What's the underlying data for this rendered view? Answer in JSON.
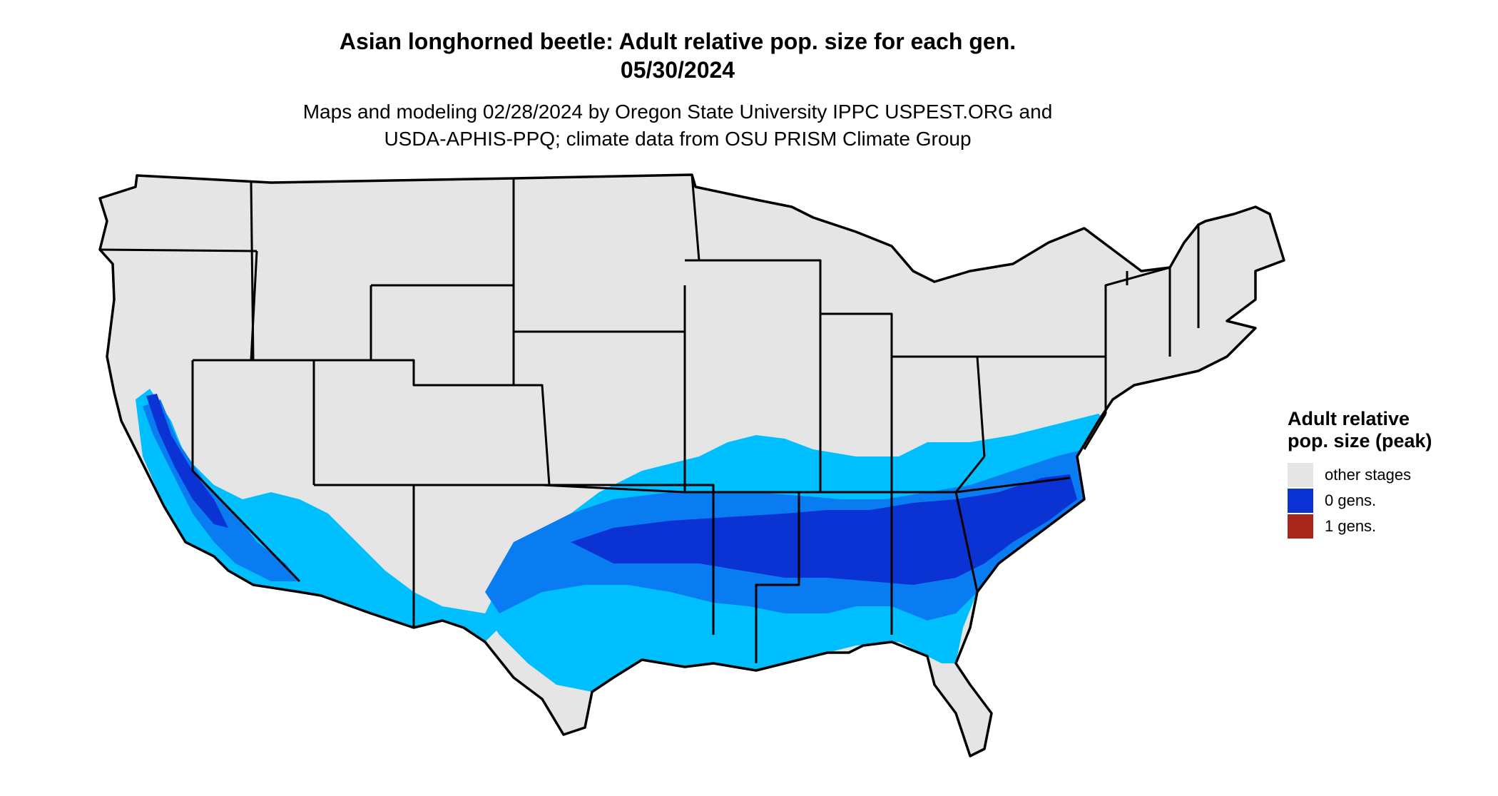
{
  "title": {
    "line1": "Asian longhorned beetle: Adult relative pop. size for each gen.",
    "line2": "05/30/2024"
  },
  "subtitle": {
    "line1": "Maps and modeling 02/28/2024 by Oregon State University IPPC USPEST.ORG and",
    "line2": "USDA-APHIS-PPQ; climate data from OSU PRISM Climate Group"
  },
  "legend": {
    "title": "Adult relative pop. size (peak)",
    "items": [
      {
        "label": "other stages",
        "color": "#e5e5e5"
      },
      {
        "label": "0 gens.",
        "color": "#0b33d4"
      },
      {
        "label": "1 gens.",
        "color": "#a8251a"
      }
    ]
  },
  "map_colors": {
    "land": "#e5e5e5",
    "light_blue": "#00bfff",
    "mid_blue": "#0a7cf2",
    "dark_blue": "#0b33d4",
    "border": "#000000"
  }
}
